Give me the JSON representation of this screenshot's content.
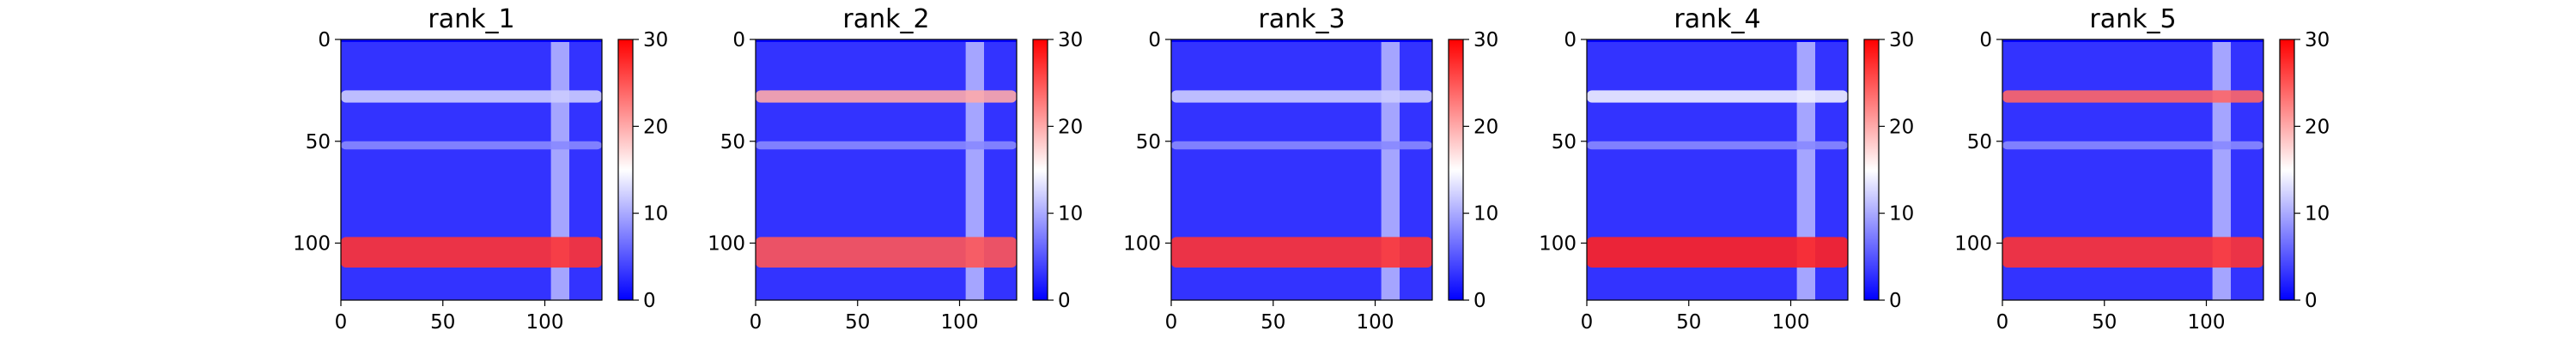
{
  "chart_data": [
    {
      "type": "heatmap",
      "title": "rank_1",
      "xlabel": "",
      "ylabel": "",
      "xlim": [
        0,
        128
      ],
      "ylim": [
        128,
        0
      ],
      "x_ticks": [
        "0",
        "50",
        "100"
      ],
      "y_ticks": [
        "0",
        "50",
        "100"
      ],
      "colorbar": {
        "range": [
          0,
          30
        ],
        "ticks": [
          "0",
          "10",
          "20",
          "30"
        ],
        "colormap": "bwr",
        "colors": [
          "#0000ff",
          "#ffffff",
          "#ff0000"
        ]
      },
      "background_value": 3,
      "horizontal_bands": [
        {
          "y": [
            25,
            31
          ],
          "value": 12
        },
        {
          "y": [
            50,
            54
          ],
          "value": 8
        },
        {
          "y": [
            97,
            112
          ],
          "value": 27
        }
      ],
      "vertical_bands": [
        {
          "x": [
            103,
            112
          ],
          "value": 12
        }
      ],
      "diagonal": {
        "value": 0
      }
    },
    {
      "type": "heatmap",
      "title": "rank_2",
      "xlabel": "",
      "ylabel": "",
      "xlim": [
        0,
        128
      ],
      "ylim": [
        128,
        0
      ],
      "x_ticks": [
        "0",
        "50",
        "100"
      ],
      "y_ticks": [
        "0",
        "50",
        "100"
      ],
      "colorbar": {
        "range": [
          0,
          30
        ],
        "ticks": [
          "0",
          "10",
          "20",
          "30"
        ],
        "colormap": "bwr",
        "colors": [
          "#0000ff",
          "#ffffff",
          "#ff0000"
        ]
      },
      "background_value": 3,
      "horizontal_bands": [
        {
          "y": [
            25,
            31
          ],
          "value": 20
        },
        {
          "y": [
            50,
            54
          ],
          "value": 8
        },
        {
          "y": [
            97,
            112
          ],
          "value": 25
        }
      ],
      "vertical_bands": [
        {
          "x": [
            103,
            112
          ],
          "value": 12
        }
      ],
      "diagonal": {
        "value": 0
      }
    },
    {
      "type": "heatmap",
      "title": "rank_3",
      "xlabel": "",
      "ylabel": "",
      "xlim": [
        0,
        128
      ],
      "ylim": [
        128,
        0
      ],
      "x_ticks": [
        "0",
        "50",
        "100"
      ],
      "y_ticks": [
        "0",
        "50",
        "100"
      ],
      "colorbar": {
        "range": [
          0,
          30
        ],
        "ticks": [
          "0",
          "10",
          "20",
          "30"
        ],
        "colormap": "bwr",
        "colors": [
          "#0000ff",
          "#ffffff",
          "#ff0000"
        ]
      },
      "background_value": 3,
      "horizontal_bands": [
        {
          "y": [
            25,
            31
          ],
          "value": 12
        },
        {
          "y": [
            50,
            54
          ],
          "value": 8
        },
        {
          "y": [
            97,
            112
          ],
          "value": 27
        }
      ],
      "vertical_bands": [
        {
          "x": [
            103,
            112
          ],
          "value": 12
        }
      ],
      "diagonal": {
        "value": 0
      }
    },
    {
      "type": "heatmap",
      "title": "rank_4",
      "xlabel": "",
      "ylabel": "",
      "xlim": [
        0,
        128
      ],
      "ylim": [
        128,
        0
      ],
      "x_ticks": [
        "0",
        "50",
        "100"
      ],
      "y_ticks": [
        "0",
        "50",
        "100"
      ],
      "colorbar": {
        "range": [
          0,
          30
        ],
        "ticks": [
          "0",
          "10",
          "20",
          "30"
        ],
        "colormap": "bwr",
        "colors": [
          "#0000ff",
          "#ffffff",
          "#ff0000"
        ]
      },
      "background_value": 3,
      "horizontal_bands": [
        {
          "y": [
            25,
            31
          ],
          "value": 14
        },
        {
          "y": [
            50,
            54
          ],
          "value": 8
        },
        {
          "y": [
            97,
            112
          ],
          "value": 28
        }
      ],
      "vertical_bands": [
        {
          "x": [
            103,
            112
          ],
          "value": 12
        }
      ],
      "diagonal": {
        "value": 0
      }
    },
    {
      "type": "heatmap",
      "title": "rank_5",
      "xlabel": "",
      "ylabel": "",
      "xlim": [
        0,
        128
      ],
      "ylim": [
        128,
        0
      ],
      "x_ticks": [
        "0",
        "50",
        "100"
      ],
      "y_ticks": [
        "0",
        "50",
        "100"
      ],
      "colorbar": {
        "range": [
          0,
          30
        ],
        "ticks": [
          "0",
          "10",
          "20",
          "30"
        ],
        "colormap": "bwr",
        "colors": [
          "#0000ff",
          "#ffffff",
          "#ff0000"
        ]
      },
      "background_value": 3,
      "horizontal_bands": [
        {
          "y": [
            25,
            31
          ],
          "value": 24
        },
        {
          "y": [
            50,
            54
          ],
          "value": 8
        },
        {
          "y": [
            97,
            112
          ],
          "value": 27
        }
      ],
      "vertical_bands": [
        {
          "x": [
            103,
            112
          ],
          "value": 12
        }
      ],
      "diagonal": {
        "value": 0
      }
    }
  ]
}
